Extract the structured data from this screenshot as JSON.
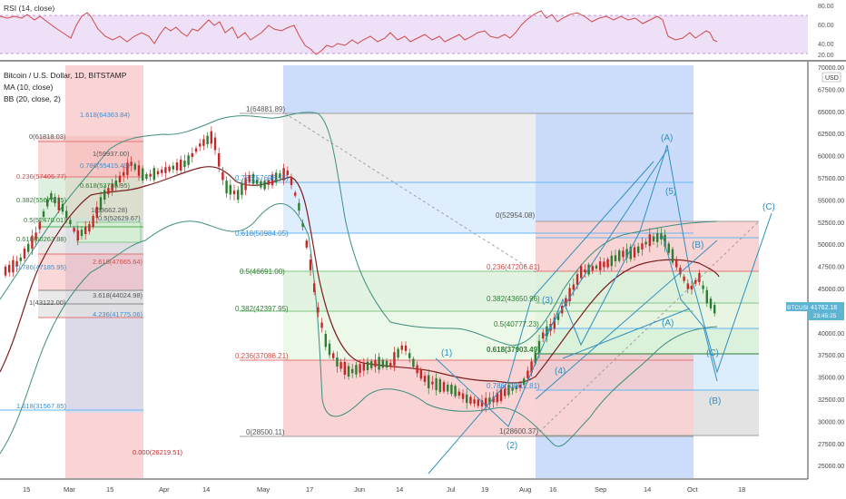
{
  "rsi": {
    "title": "RSI (14, close)",
    "ticks": [
      "80.00",
      "60.00",
      "40.00",
      "20.00"
    ]
  },
  "price_pane": {
    "symbol_title": "Bitcoin / U.S. Dollar, 1D, BITSTAMP",
    "ma_label": "MA (10, close)",
    "bb_label": "BB (20, close, 2)",
    "currency_badge": "USD",
    "price_ticks": [
      "70000.00",
      "67500.00",
      "65000.00",
      "62500.00",
      "60000.00",
      "57500.00",
      "55000.00",
      "52500.00",
      "50000.00",
      "47500.00",
      "45000.00",
      "42500.00",
      "40000.00",
      "37500.00",
      "35000.00",
      "32500.00",
      "30000.00",
      "27500.00",
      "25000.00"
    ],
    "last_price_tag": "BTCUSD",
    "last_price": "41762.18",
    "last_price_sub": "23:45:25"
  },
  "time_axis": [
    "15",
    "Mar",
    "15",
    "Apr",
    "14",
    "May",
    "17",
    "Jun",
    "14",
    "Jul",
    "19",
    "Aug",
    "16",
    "Sep",
    "14",
    "Oct",
    "18"
  ],
  "fib_left": [
    "1.618(64363.84)",
    "0(61818.03)",
    "1(59937.00)",
    "0.236(57405.77)",
    "0.786(55415.49)",
    "0.382(55676.15)",
    "0.618(53735.95)",
    "0.5(52470.01)",
    "1(53662.28)",
    "0.618(50263.88)",
    "0.5(52629.67)",
    "0.786(47185.95)",
    "2.618(47665.64)",
    "1(43122.00)",
    "3.618(44024.98)",
    "4.236(41775.06)",
    "1.618(31567.85)",
    "0.000(26219.51)"
  ],
  "fib_main": [
    "1(64881.89)",
    "0.786(57696.55)",
    "0.618(50984.05)",
    "0.5(46691.00)",
    "0.382(42397.95)",
    "0.236(37086.21)",
    "0(28500.11)",
    "0(52954.08)",
    "0.236(47206.61)",
    "0.382(43650.96)",
    "0.5(40777.23)",
    "0.618(37903.49)",
    "0.786(33812.81)",
    "1(28600.37)"
  ],
  "waves": [
    "(1)",
    "(2)",
    "(3)",
    "(4)",
    "(5)",
    "(A)",
    "(B)",
    "(C)",
    "(A)",
    "(B)",
    "(C)"
  ],
  "colors": {
    "candle_up": "#2e7d32",
    "candle_down": "#c62828",
    "ma": "#7b1f1f",
    "bb": "#3e8e7e",
    "fib_red": "#e57373",
    "fib_green": "#81c784",
    "fib_blue": "#64b5f6",
    "fib_gray": "#9e9e9e",
    "wave": "#2f8fbf",
    "rsi_line": "#d04a4a",
    "rsi_band": "#ead6f5"
  }
}
